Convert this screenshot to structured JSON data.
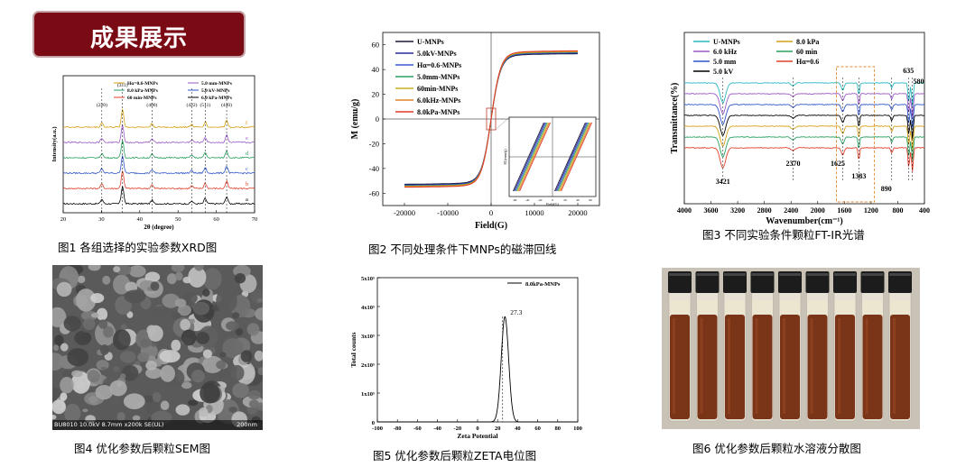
{
  "banner": {
    "title": "成果展示"
  },
  "captions": {
    "fig1": "图1 各组选择的实验参数XRD图",
    "fig2": "图2 不同处理条件下MNPs的磁滞回线",
    "fig3": "图3 不同实验条件颗粒FT-IR光谱",
    "fig4": "图4 优化参数后颗粒SEM图",
    "fig5": "图5 优化参数后颗粒ZETA电位图",
    "fig6": "图6 优化参数后颗粒水溶液分散图"
  },
  "sem": {
    "info": "BU8010 10.0kV 8.7mm x200k SE(UL)",
    "scale": "200nm"
  },
  "chart_data": [
    {
      "id": "xrd",
      "type": "line",
      "xlabel": "2θ (degree)",
      "ylabel": "Intensity(a.u.)",
      "xlim": [
        20,
        70
      ],
      "xticks": [
        20,
        30,
        40,
        50,
        60,
        70
      ],
      "peak_positions": [
        30.1,
        35.5,
        43.2,
        53.6,
        57.1,
        62.7
      ],
      "peak_labels": [
        "(220)",
        "(311)",
        "(400)",
        "(422)",
        "(511)",
        "(440)"
      ],
      "peak_heights": [
        0.25,
        1.0,
        0.2,
        0.15,
        0.3,
        0.4
      ],
      "series": [
        {
          "name": "6.0 kPa-MNPs",
          "tag": "a",
          "color": "#000000"
        },
        {
          "name": "60 min-MNPs",
          "tag": "b",
          "color": "#e0402a"
        },
        {
          "name": "5.0 kV-MNPs",
          "tag": "c",
          "color": "#2e55c8"
        },
        {
          "name": "8.0 kPa-MNPs",
          "tag": "d",
          "color": "#2aa060"
        },
        {
          "name": "5.0 mm-MNPs",
          "tag": "e",
          "color": "#9b59c6"
        },
        {
          "name": "Hα=0.6-MNPs",
          "tag": "f",
          "color": "#d4a017"
        }
      ]
    },
    {
      "id": "hysteresis",
      "type": "line",
      "xlabel": "Field(G)",
      "ylabel": "M (emu/g)",
      "xlim": [
        -25000,
        25000
      ],
      "ylim": [
        -70,
        70
      ],
      "xticks": [
        -20000,
        -10000,
        0,
        10000,
        20000
      ],
      "yticks": [
        -60,
        -40,
        -20,
        0,
        20,
        40,
        60
      ],
      "saturation": [
        53,
        53.5,
        54,
        54.3,
        54.6,
        55,
        55.4
      ],
      "inset": {
        "xlabel": "Field(G)",
        "ylabel": "M (emu/g)",
        "xticks": [
          -60,
          -40,
          -20,
          0,
          20,
          40,
          60
        ]
      },
      "series": [
        {
          "name": "U-MNPs",
          "color": "#1a1a3a"
        },
        {
          "name": "5.0kV-MNPs",
          "color": "#2a2a9a"
        },
        {
          "name": "Hα=0.6-MNPs",
          "color": "#3a5ad0"
        },
        {
          "name": "5.0mm-MNPs",
          "color": "#2aa060"
        },
        {
          "name": "60min-MNPs",
          "color": "#c8b020"
        },
        {
          "name": "6.0kHz-MNPs",
          "color": "#e0802a"
        },
        {
          "name": "8.0kPa-MNPs",
          "color": "#e03a2a"
        }
      ]
    },
    {
      "id": "ftir",
      "type": "line",
      "xlabel": "Wavenumber(cm⁻¹)",
      "ylabel": "Transmittance(%)",
      "xlim": [
        4000,
        400
      ],
      "xticks": [
        4000,
        3600,
        3200,
        2800,
        2400,
        2000,
        1600,
        1200,
        800,
        400
      ],
      "annotations": [
        "635",
        "580",
        "3421",
        "2370",
        "1625",
        "1383",
        "890"
      ],
      "series": [
        {
          "name": "U-MNPs",
          "color": "#2ab8c0"
        },
        {
          "name": "6.0 kHz",
          "color": "#9b59c6"
        },
        {
          "name": "5.0 mm",
          "color": "#2e55c8"
        },
        {
          "name": "5.0 kV",
          "color": "#000000"
        },
        {
          "name": "8.0 kPa",
          "color": "#d4a017"
        },
        {
          "name": "60 min",
          "color": "#2aa060"
        },
        {
          "name": "Hα=0.6",
          "color": "#e0402a"
        }
      ]
    },
    {
      "id": "zeta",
      "type": "line",
      "xlabel": "Zeta Potential",
      "ylabel": "Total counts",
      "xlim": [
        -100,
        100
      ],
      "ylim": [
        0,
        500000
      ],
      "xticks": [
        -100,
        -80,
        -60,
        -40,
        -20,
        0,
        20,
        40,
        60,
        80,
        100
      ],
      "yticks": [
        "0",
        "1x10⁵",
        "2x10⁵",
        "3x10⁵",
        "4x10⁵",
        "5x10⁵"
      ],
      "peak_label": "27.3",
      "peak_x": 27.3,
      "peak_y": 365000,
      "series": [
        {
          "name": "8.0kPa-MNPs",
          "color": "#000000"
        }
      ]
    }
  ]
}
